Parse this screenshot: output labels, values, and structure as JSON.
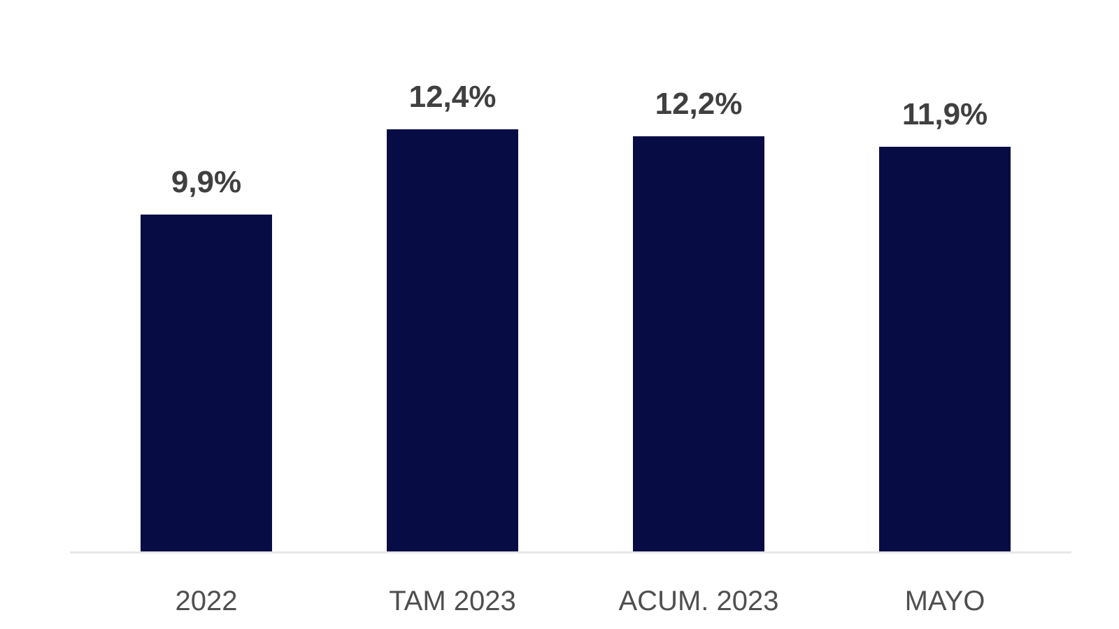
{
  "chart_data": {
    "type": "bar",
    "categories": [
      "2022",
      "TAM 2023",
      "ACUM. 2023",
      "MAYO"
    ],
    "values": [
      9.9,
      12.4,
      12.2,
      11.9
    ],
    "value_labels": [
      "9,9%",
      "12,4%",
      "12,2%",
      "11,9%"
    ],
    "title": "",
    "xlabel": "",
    "ylabel": "",
    "ylim": [
      0,
      16.2
    ],
    "grid": false,
    "legend": false,
    "bar_color": "#080c45",
    "value_label_color": "#404040",
    "axis_label_color": "#4f4f4f",
    "baseline_color": "#e7e7e7",
    "background_color": "#ffffff"
  }
}
